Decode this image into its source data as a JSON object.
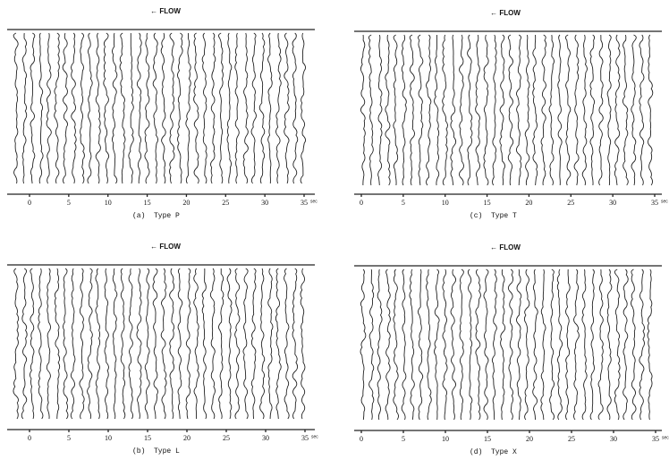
{
  "panels": [
    {
      "flow": "← FLOW",
      "ticks": [
        0,
        5,
        10,
        15,
        20,
        25,
        30,
        35
      ],
      "unit": "sec",
      "caption": "(a)  Type P"
    },
    {
      "flow": "← FLOW",
      "ticks": [
        0,
        5,
        10,
        15,
        20,
        25,
        30,
        35
      ],
      "unit": "sec",
      "caption": "(c)  Type T"
    },
    {
      "flow": "← FLOW",
      "ticks": [
        0,
        5,
        10,
        15,
        20,
        25,
        30,
        35
      ],
      "unit": "sec",
      "caption": "(b)  Type L"
    },
    {
      "flow": "← FLOW",
      "ticks": [
        0,
        5,
        10,
        15,
        20,
        25,
        30,
        35
      ],
      "unit": "sec",
      "caption": "(d)  Type X"
    }
  ]
}
